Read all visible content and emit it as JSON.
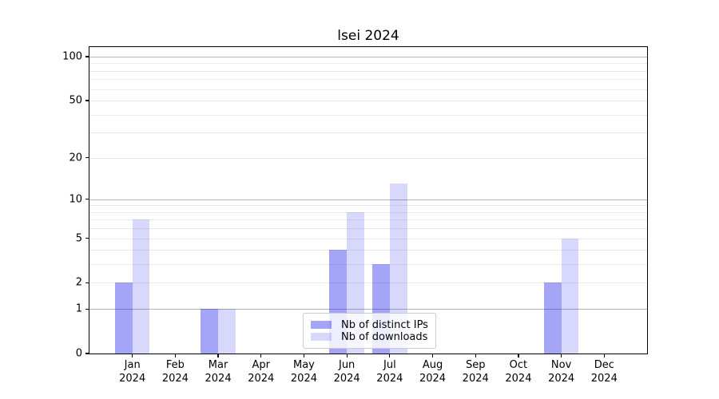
{
  "title": "lsei 2024",
  "chart_data": {
    "type": "bar",
    "title": "lsei 2024",
    "categories": [
      "Jan",
      "Feb",
      "Mar",
      "Apr",
      "May",
      "Jun",
      "Jul",
      "Aug",
      "Sep",
      "Oct",
      "Nov",
      "Dec"
    ],
    "category_year": "2024",
    "series": [
      {
        "name": "Nb of distinct IPs",
        "color": "rgba(10,10,235,0.37)",
        "values": [
          2,
          0,
          1,
          0,
          0,
          4,
          3,
          0,
          0,
          0,
          2,
          0
        ]
      },
      {
        "name": "Nb of downloads",
        "color": "rgba(10,10,235,0.16)",
        "values": [
          7,
          0,
          1,
          0,
          0,
          8,
          13,
          0,
          0,
          0,
          5,
          0
        ]
      }
    ],
    "yscale": "log1p",
    "ylim": [
      0,
      116
    ],
    "ytick_labels": [
      0,
      1,
      2,
      5,
      10,
      20,
      50,
      100
    ],
    "major_gridlines": [
      1,
      10,
      100
    ],
    "minor_gridlines": [
      2,
      3,
      4,
      5,
      6,
      7,
      8,
      9,
      20,
      30,
      40,
      50,
      60,
      70,
      80,
      90
    ],
    "grid": true,
    "legend_position": "lower center",
    "xlabel": "",
    "ylabel": ""
  },
  "colors": {
    "bar_distinct_ips": "rgba(10,10,235,0.37)",
    "bar_downloads": "rgba(10,10,235,0.16)",
    "grid_major": "#b4b4b4",
    "grid_minor": "#eaeaea",
    "spine": "#000000",
    "legend_border": "#cccccc",
    "background": "#ffffff"
  }
}
